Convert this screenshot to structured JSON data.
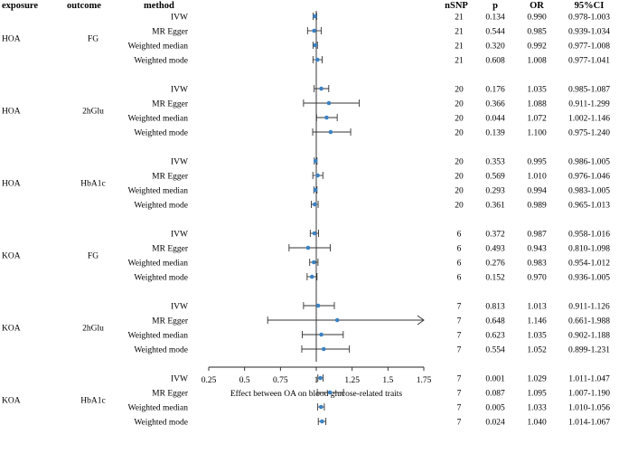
{
  "chart_data": {
    "type": "forest",
    "headers": {
      "exposure": "exposure",
      "outcome": "outcome",
      "method": "method",
      "nsnp": "nSNP",
      "p": "p",
      "or": "OR",
      "ci": "95%CI"
    },
    "xlabel": "Effect between OA on blood glucose-related traits",
    "xticks": [
      "0.25",
      "0.5",
      "0.75",
      "1",
      "1.25",
      "1.5",
      "1.75"
    ],
    "xlim": [
      0.25,
      1.75
    ],
    "reference_line": 1,
    "colors": {
      "point": "#3b82c4",
      "line": "#333333"
    },
    "groups": [
      {
        "exposure": "HOA",
        "outcome": "FG",
        "rows": [
          {
            "method": "IVW",
            "nsnp": "21",
            "p": "0.134",
            "or": "0.990",
            "ci": "0.978-1.003",
            "or_val": 0.99,
            "lo": 0.978,
            "hi": 1.003
          },
          {
            "method": "MR Egger",
            "nsnp": "21",
            "p": "0.544",
            "or": "0.985",
            "ci": "0.939-1.034",
            "or_val": 0.985,
            "lo": 0.939,
            "hi": 1.034
          },
          {
            "method": "Weighted median",
            "nsnp": "21",
            "p": "0.320",
            "or": "0.992",
            "ci": "0.977-1.008",
            "or_val": 0.992,
            "lo": 0.977,
            "hi": 1.008
          },
          {
            "method": "Weighted mode",
            "nsnp": "21",
            "p": "0.608",
            "or": "1.008",
            "ci": "0.977-1.041",
            "or_val": 1.008,
            "lo": 0.977,
            "hi": 1.041
          }
        ]
      },
      {
        "exposure": "HOA",
        "outcome": "2hGlu",
        "rows": [
          {
            "method": "IVW",
            "nsnp": "20",
            "p": "0.176",
            "or": "1.035",
            "ci": "0.985-1.087",
            "or_val": 1.035,
            "lo": 0.985,
            "hi": 1.087
          },
          {
            "method": "MR Egger",
            "nsnp": "20",
            "p": "0.366",
            "or": "1.088",
            "ci": "0.911-1.299",
            "or_val": 1.088,
            "lo": 0.911,
            "hi": 1.299
          },
          {
            "method": "Weighted median",
            "nsnp": "20",
            "p": "0.044",
            "or": "1.072",
            "ci": "1.002-1.146",
            "or_val": 1.072,
            "lo": 1.002,
            "hi": 1.146
          },
          {
            "method": "Weighted mode",
            "nsnp": "20",
            "p": "0.139",
            "or": "1.100",
            "ci": "0.975-1.240",
            "or_val": 1.1,
            "lo": 0.975,
            "hi": 1.24
          }
        ]
      },
      {
        "exposure": "HOA",
        "outcome": "HbA1c",
        "rows": [
          {
            "method": "IVW",
            "nsnp": "20",
            "p": "0.353",
            "or": "0.995",
            "ci": "0.986-1.005",
            "or_val": 0.995,
            "lo": 0.986,
            "hi": 1.005
          },
          {
            "method": "MR Egger",
            "nsnp": "20",
            "p": "0.569",
            "or": "1.010",
            "ci": "0.976-1.046",
            "or_val": 1.01,
            "lo": 0.976,
            "hi": 1.046
          },
          {
            "method": "Weighted median",
            "nsnp": "20",
            "p": "0.293",
            "or": "0.994",
            "ci": "0.983-1.005",
            "or_val": 0.994,
            "lo": 0.983,
            "hi": 1.005
          },
          {
            "method": "Weighted mode",
            "nsnp": "20",
            "p": "0.361",
            "or": "0.989",
            "ci": "0.965-1.013",
            "or_val": 0.989,
            "lo": 0.965,
            "hi": 1.013
          }
        ]
      },
      {
        "exposure": "KOA",
        "outcome": "FG",
        "rows": [
          {
            "method": "IVW",
            "nsnp": "6",
            "p": "0.372",
            "or": "0.987",
            "ci": "0.958-1.016",
            "or_val": 0.987,
            "lo": 0.958,
            "hi": 1.016
          },
          {
            "method": "MR Egger",
            "nsnp": "6",
            "p": "0.493",
            "or": "0.943",
            "ci": "0.810-1.098",
            "or_val": 0.943,
            "lo": 0.81,
            "hi": 1.098
          },
          {
            "method": "Weighted median",
            "nsnp": "6",
            "p": "0.276",
            "or": "0.983",
            "ci": "0.954-1.012",
            "or_val": 0.983,
            "lo": 0.954,
            "hi": 1.012
          },
          {
            "method": "Weighted mode",
            "nsnp": "6",
            "p": "0.152",
            "or": "0.970",
            "ci": "0.936-1.005",
            "or_val": 0.97,
            "lo": 0.936,
            "hi": 1.005
          }
        ]
      },
      {
        "exposure": "KOA",
        "outcome": "2hGlu",
        "rows": [
          {
            "method": "IVW",
            "nsnp": "7",
            "p": "0.813",
            "or": "1.013",
            "ci": "0.911-1.126",
            "or_val": 1.013,
            "lo": 0.911,
            "hi": 1.126
          },
          {
            "method": "MR Egger",
            "nsnp": "7",
            "p": "0.648",
            "or": "1.146",
            "ci": "0.661-1.988",
            "or_val": 1.146,
            "lo": 0.661,
            "hi": 1.988
          },
          {
            "method": "Weighted median",
            "nsnp": "7",
            "p": "0.623",
            "or": "1.035",
            "ci": "0.902-1.188",
            "or_val": 1.035,
            "lo": 0.902,
            "hi": 1.188
          },
          {
            "method": "Weighted mode",
            "nsnp": "7",
            "p": "0.554",
            "or": "1.052",
            "ci": "0.899-1.231",
            "or_val": 1.052,
            "lo": 0.899,
            "hi": 1.231
          }
        ]
      },
      {
        "exposure": "KOA",
        "outcome": "HbA1c",
        "rows": [
          {
            "method": "IVW",
            "nsnp": "7",
            "p": "0.001",
            "or": "1.029",
            "ci": "1.011-1.047",
            "or_val": 1.029,
            "lo": 1.011,
            "hi": 1.047
          },
          {
            "method": "MR Egger",
            "nsnp": "7",
            "p": "0.087",
            "or": "1.095",
            "ci": "1.007-1.190",
            "or_val": 1.095,
            "lo": 1.007,
            "hi": 1.19
          },
          {
            "method": "Weighted median",
            "nsnp": "7",
            "p": "0.005",
            "or": "1.033",
            "ci": "1.010-1.056",
            "or_val": 1.033,
            "lo": 1.01,
            "hi": 1.056
          },
          {
            "method": "Weighted mode",
            "nsnp": "7",
            "p": "0.024",
            "or": "1.040",
            "ci": "1.014-1.067",
            "or_val": 1.04,
            "lo": 1.014,
            "hi": 1.067
          }
        ]
      }
    ]
  }
}
